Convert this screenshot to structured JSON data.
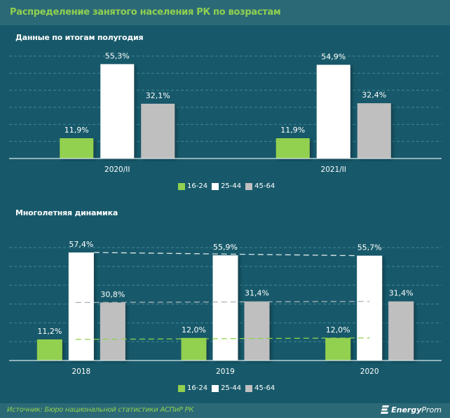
{
  "header": {
    "title": "Распределение занятого населения РК по возрастам"
  },
  "footer": {
    "source": "Источник: Бюро национальной статистики АСПиР РК",
    "logo_bold": "Energy",
    "logo_light": "Prom"
  },
  "colors": {
    "16-24": "#92d050",
    "25-44": "#ffffff",
    "45-64": "#bfbfbf",
    "background": "#17596a",
    "header": "#2c6977",
    "accent": "#8fd14f"
  },
  "chart_data": [
    {
      "type": "bar",
      "title": "Данные по итогам полугодия",
      "categories": [
        "2020/II",
        "2021/II"
      ],
      "series": [
        {
          "name": "16-24",
          "values": [
            11.9,
            11.9
          ],
          "labels": [
            "11,9%",
            "11,9%"
          ]
        },
        {
          "name": "25-44",
          "values": [
            55.3,
            54.9
          ],
          "labels": [
            "55,3%",
            "54,9%"
          ]
        },
        {
          "name": "45-64",
          "values": [
            32.1,
            32.4
          ],
          "labels": [
            "32,1%",
            "32,4%"
          ]
        }
      ],
      "xlabel": "",
      "ylabel": "",
      "ylim": [
        0,
        60
      ],
      "grid": true,
      "legend": [
        "16-24",
        "25-44",
        "45-64"
      ],
      "legend_position": "bottom"
    },
    {
      "type": "bar",
      "title": "Многолетняя динамика",
      "categories": [
        "2018",
        "2019",
        "2020"
      ],
      "series": [
        {
          "name": "16-24",
          "values": [
            11.2,
            12.0,
            12.0
          ],
          "labels": [
            "11,2%",
            "12,0%",
            "12,0%"
          ]
        },
        {
          "name": "25-44",
          "values": [
            57.4,
            55.9,
            55.7
          ],
          "labels": [
            "57,4%",
            "55,9%",
            "55,7%"
          ]
        },
        {
          "name": "45-64",
          "values": [
            30.8,
            31.4,
            31.4
          ],
          "labels": [
            "30,8%",
            "31,4%",
            "31,4%"
          ]
        }
      ],
      "trend_lines": true,
      "xlabel": "",
      "ylabel": "",
      "ylim": [
        0,
        60
      ],
      "grid": true,
      "legend": [
        "16-24",
        "25-44",
        "45-64"
      ],
      "legend_position": "bottom"
    }
  ]
}
